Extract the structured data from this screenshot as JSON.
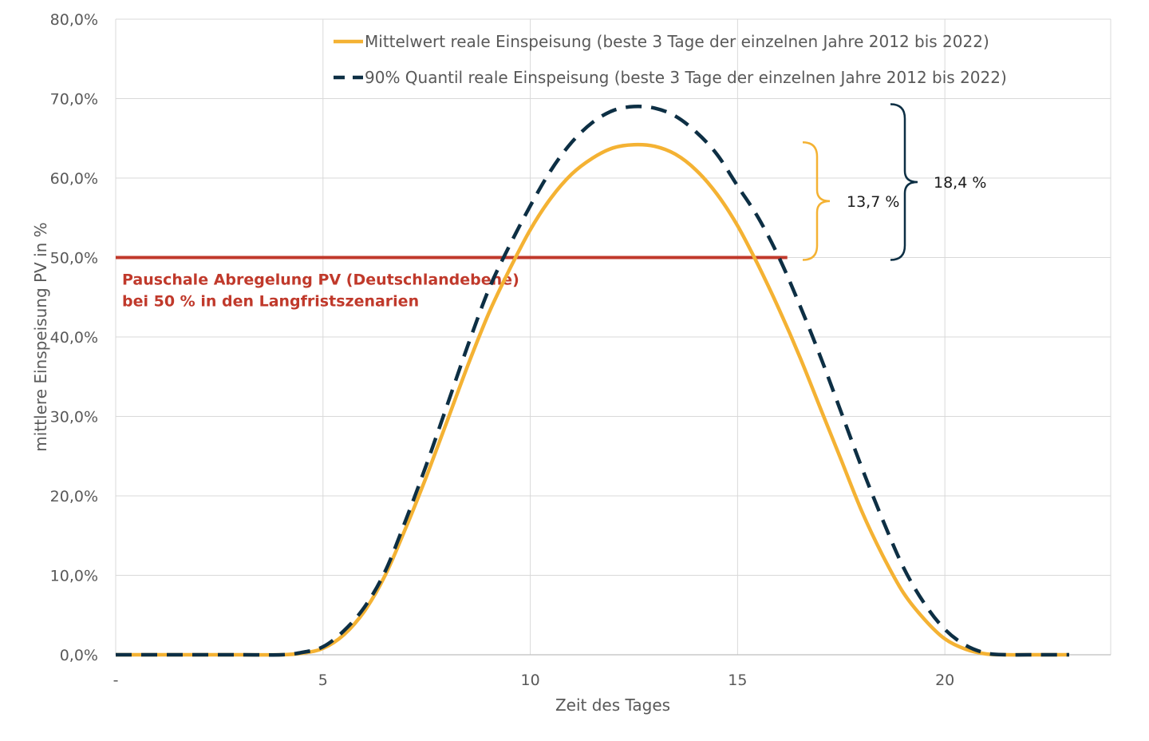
{
  "chart_data": {
    "type": "line",
    "xlabel": "Zeit des Tages",
    "ylabel": "mittlere Einspeisung PV in %",
    "xlim": [
      0,
      24
    ],
    "ylim": [
      0,
      80
    ],
    "x_ticks": [
      {
        "value": 0,
        "label": "-"
      },
      {
        "value": 5,
        "label": "5"
      },
      {
        "value": 10,
        "label": "10"
      },
      {
        "value": 15,
        "label": "15"
      },
      {
        "value": 20,
        "label": "20"
      }
    ],
    "y_ticks": [
      {
        "value": 0,
        "label": "0,0%"
      },
      {
        "value": 10,
        "label": "10,0%"
      },
      {
        "value": 20,
        "label": "20,0%"
      },
      {
        "value": 30,
        "label": "30,0%"
      },
      {
        "value": 40,
        "label": "40,0%"
      },
      {
        "value": 50,
        "label": "50,0%"
      },
      {
        "value": 60,
        "label": "60,0%"
      },
      {
        "value": 70,
        "label": "70,0%"
      },
      {
        "value": 80,
        "label": "80,0%"
      }
    ],
    "grid": true,
    "legend_position": "top",
    "series": [
      {
        "name": "Mittelwert reale Einspeisung (beste 3 Tage der einzelnen Jahre 2012 bis 2022)",
        "style": "solid",
        "color": "#f4b233",
        "x": [
          0,
          1,
          2,
          3,
          4,
          4.5,
          5,
          5.5,
          6,
          6.5,
          7,
          7.5,
          8,
          8.5,
          9,
          9.5,
          10,
          10.5,
          11,
          11.5,
          12,
          12.5,
          13,
          13.5,
          14,
          14.5,
          15,
          15.5,
          16,
          16.5,
          17,
          17.5,
          18,
          18.5,
          19,
          19.5,
          20,
          20.5,
          21,
          21.5,
          22,
          23
        ],
        "values": [
          0,
          0,
          0,
          0,
          0,
          0.2,
          0.8,
          2.5,
          5.5,
          10,
          16,
          22.5,
          29.5,
          36.5,
          43,
          48.5,
          53.5,
          57.5,
          60.5,
          62.5,
          63.8,
          64.2,
          64,
          63,
          61,
          58,
          54,
          49,
          43.5,
          37.5,
          31,
          24.5,
          18,
          12.5,
          7.8,
          4.5,
          2,
          0.7,
          0.1,
          0,
          0,
          0
        ]
      },
      {
        "name": "90% Quantil reale Einspeisung (beste 3 Tage der einzelnen Jahre 2012 bis 2022)",
        "style": "dashed",
        "color": "#0d2f44",
        "x": [
          0,
          1,
          2,
          3,
          4,
          4.5,
          5,
          5.5,
          6,
          6.5,
          7,
          7.5,
          8,
          8.5,
          9,
          9.5,
          10,
          10.5,
          11,
          11.5,
          12,
          12.5,
          13,
          13.5,
          14,
          14.5,
          15,
          15.5,
          16,
          16.5,
          17,
          17.5,
          18,
          18.5,
          19,
          19.5,
          20,
          20.5,
          21,
          21.5,
          22,
          23
        ],
        "values": [
          0,
          0,
          0,
          0,
          0,
          0.3,
          1,
          3,
          6,
          10.5,
          17,
          24,
          31.5,
          39,
          46,
          51.5,
          56.5,
          61,
          64.5,
          67,
          68.5,
          69,
          68.8,
          67.8,
          65.8,
          63,
          59,
          55,
          50,
          44,
          37.5,
          30.5,
          23.5,
          17,
          11,
          6.5,
          3.2,
          1.2,
          0.2,
          0,
          0,
          0
        ]
      }
    ],
    "reference_line": {
      "value": 50,
      "x_range": [
        0,
        16.2
      ],
      "color": "#c0392b",
      "label_lines": [
        "Pauschale Abregelung PV (Deutschlandebene)",
        "bei 50 % in den Langfristszenarien"
      ]
    },
    "annotations": [
      {
        "label": "13,7 %",
        "from": 50,
        "to": 64.2,
        "color": "#f4b233"
      },
      {
        "label": "18,4 %",
        "from": 50,
        "to": 69,
        "color": "#0d2f44"
      }
    ]
  }
}
